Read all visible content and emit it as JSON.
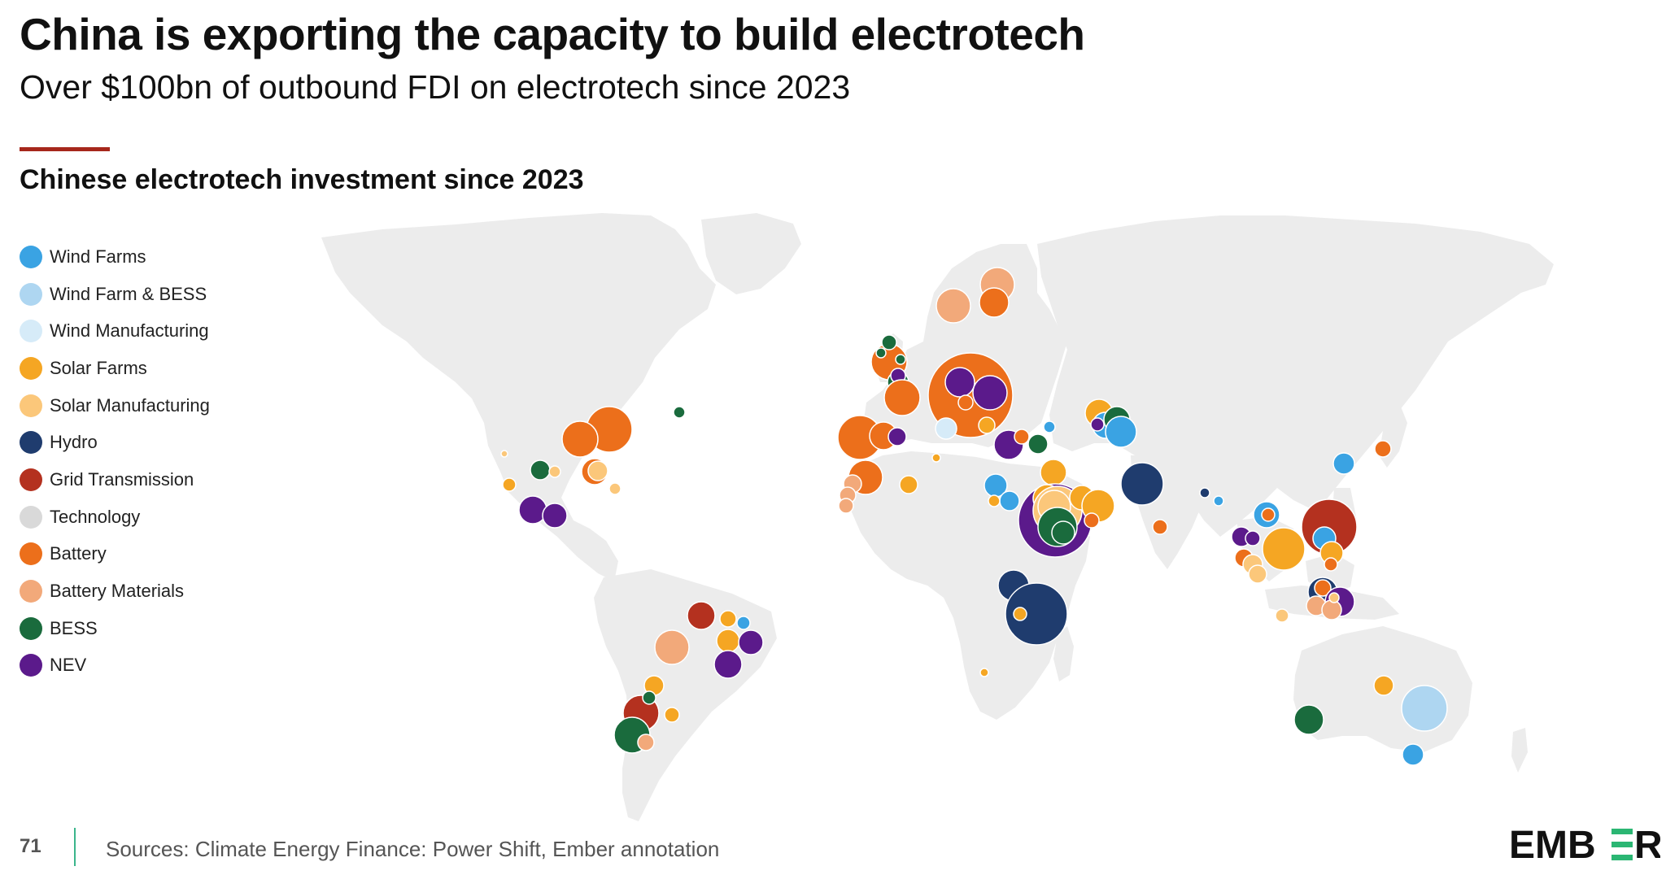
{
  "header": {
    "title": "China is exporting the capacity to build electrotech",
    "subtitle": "Over $100bn of outbound FDI on electrotech since 2023",
    "chart_title": "Chinese electrotech investment since 2023",
    "accent_color": "#a6271b"
  },
  "legend": [
    {
      "key": "wind_farms",
      "label": "Wind Farms",
      "color": "#3aa3e3"
    },
    {
      "key": "wind_bess",
      "label": "Wind Farm & BESS",
      "color": "#aed6f1"
    },
    {
      "key": "wind_mfg",
      "label": "Wind Manufacturing",
      "color": "#d6ebf8"
    },
    {
      "key": "solar_farms",
      "label": "Solar Farms",
      "color": "#f5a623"
    },
    {
      "key": "solar_mfg",
      "label": "Solar Manufacturing",
      "color": "#fbc77a"
    },
    {
      "key": "hydro",
      "label": "Hydro",
      "color": "#1f3c6e"
    },
    {
      "key": "grid",
      "label": "Grid Transmission",
      "color": "#b4311f"
    },
    {
      "key": "tech",
      "label": "Technology",
      "color": "#d9d9d9"
    },
    {
      "key": "battery",
      "label": "Battery",
      "color": "#ec6f1b"
    },
    {
      "key": "battery_mat",
      "label": "Battery Materials",
      "color": "#f2a97a"
    },
    {
      "key": "bess",
      "label": "BESS",
      "color": "#1a6b3d"
    },
    {
      "key": "nev",
      "label": "NEV",
      "color": "#5b1a8b"
    }
  ],
  "map": {
    "land_color": "#ececec",
    "bubble_stroke": "#ffffff"
  },
  "footer": {
    "page_number": "71",
    "source": "Sources: Climate Energy Finance: Power Shift, Ember annotation",
    "divider_color": "#3bb58b"
  },
  "logo": {
    "text_left": "EMB",
    "text_right": "R",
    "color": "#111111",
    "accent": "#2bb673"
  }
}
